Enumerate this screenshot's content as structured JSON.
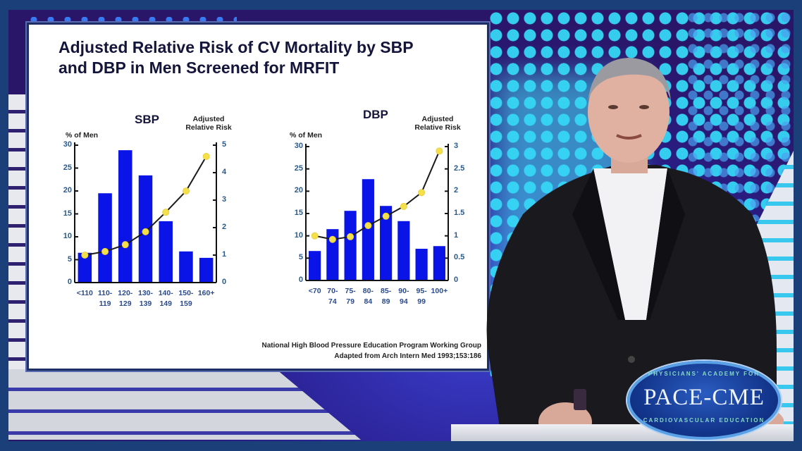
{
  "slide": {
    "title_line1": "Adjusted Relative Risk of CV Mortality by SBP",
    "title_line2": "and DBP in Men Screened for MRFIT",
    "citation_line1": "National High Blood Pressure Education Program Working Group",
    "citation_line2": "Adapted from Arch Intern Med 1993;153:186"
  },
  "charts": {
    "sbp": {
      "title": "SBP",
      "left_axis_label": "% of Men",
      "right_axis_label_1": "Adjusted",
      "right_axis_label_2": "Relative Risk",
      "left_ticks": [
        "0",
        "5",
        "10",
        "15",
        "20",
        "25",
        "30"
      ],
      "right_ticks": [
        "0",
        "1",
        "2",
        "3",
        "4",
        "5"
      ],
      "x_labels": [
        "<110",
        "110-\n119",
        "120-\n129",
        "130-\n139",
        "140-\n149",
        "150-\n159",
        "160+"
      ]
    },
    "dbp": {
      "title": "DBP",
      "left_axis_label": "% of Men",
      "right_axis_label_1": "Adjusted",
      "right_axis_label_2": "Relative Risk",
      "left_ticks": [
        "0",
        "5",
        "10",
        "15",
        "20",
        "25",
        "30"
      ],
      "right_ticks": [
        "0",
        "0.5",
        "1",
        "1.5",
        "2",
        "2.5",
        "3"
      ],
      "x_labels": [
        "<70",
        "70-\n74",
        "75-\n79",
        "80-\n84",
        "85-\n89",
        "90-\n94",
        "95-\n99",
        "100+"
      ]
    }
  },
  "chart_data": [
    {
      "type": "bar",
      "title": "SBP",
      "categories": [
        "<110",
        "110-119",
        "120-129",
        "130-139",
        "140-149",
        "150-159",
        "160+"
      ],
      "series": [
        {
          "name": "% of Men",
          "type": "bar",
          "axis": "left",
          "color": "#0a14e6",
          "values": [
            6.5,
            19.5,
            28.9,
            23.4,
            13.4,
            6.8,
            5.4
          ]
        },
        {
          "name": "Adjusted Relative Risk",
          "type": "line",
          "axis": "right",
          "color": "#1a1a1a",
          "marker_color": "#f4e04a",
          "values": [
            1.0,
            1.13,
            1.38,
            1.85,
            2.56,
            3.33,
            4.59
          ]
        }
      ],
      "xlabel": "",
      "ylabel": "% of Men",
      "y2label": "Adjusted Relative Risk",
      "ylim": [
        0,
        30
      ],
      "y2lim": [
        0,
        5
      ],
      "grid": false
    },
    {
      "type": "bar",
      "title": "DBP",
      "categories": [
        "<70",
        "70-74",
        "75-79",
        "80-84",
        "85-89",
        "90-94",
        "95-99",
        "100+"
      ],
      "series": [
        {
          "name": "% of Men",
          "type": "bar",
          "axis": "left",
          "color": "#0a14e6",
          "values": [
            6.6,
            11.5,
            15.6,
            22.7,
            16.7,
            13.3,
            7.1,
            7.7
          ]
        },
        {
          "name": "Adjusted Relative Risk",
          "type": "line",
          "axis": "right",
          "color": "#1a1a1a",
          "marker_color": "#f4e04a",
          "values": [
            1.0,
            0.92,
            0.98,
            1.23,
            1.44,
            1.66,
            1.97,
            2.9
          ]
        }
      ],
      "xlabel": "",
      "ylabel": "% of Men",
      "y2label": "Adjusted Relative Risk",
      "ylim": [
        0,
        30
      ],
      "y2lim": [
        0,
        3
      ],
      "grid": false
    }
  ],
  "badge": {
    "top_text": "PHYSICIANS' ACADEMY FOR",
    "main_text": "PACE-CME",
    "bottom_text": "CARDIOVASCULAR EDUCATION"
  },
  "colors": {
    "bar": "#0a14e6",
    "marker": "#f4e04a",
    "frame": "#1b3f78",
    "badge": "#12348a"
  }
}
